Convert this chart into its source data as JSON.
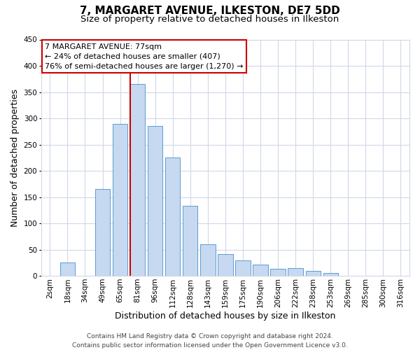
{
  "title": "7, MARGARET AVENUE, ILKESTON, DE7 5DD",
  "subtitle": "Size of property relative to detached houses in Ilkeston",
  "xlabel": "Distribution of detached houses by size in Ilkeston",
  "ylabel": "Number of detached properties",
  "bar_labels": [
    "2sqm",
    "18sqm",
    "34sqm",
    "49sqm",
    "65sqm",
    "81sqm",
    "96sqm",
    "112sqm",
    "128sqm",
    "143sqm",
    "159sqm",
    "175sqm",
    "190sqm",
    "206sqm",
    "222sqm",
    "238sqm",
    "253sqm",
    "269sqm",
    "285sqm",
    "300sqm",
    "316sqm"
  ],
  "bar_values": [
    0,
    25,
    0,
    165,
    290,
    365,
    285,
    225,
    133,
    60,
    42,
    30,
    22,
    14,
    15,
    10,
    5,
    0,
    0,
    0,
    0
  ],
  "bar_color": "#c6d9f0",
  "bar_edge_color": "#5b9bd5",
  "vline_color": "#cc0000",
  "vline_index": 5,
  "annotation_title": "7 MARGARET AVENUE: 77sqm",
  "annotation_line1": "← 24% of detached houses are smaller (407)",
  "annotation_line2": "76% of semi-detached houses are larger (1,270) →",
  "annotation_box_color": "#ffffff",
  "annotation_box_edge": "#cc0000",
  "ylim": [
    0,
    450
  ],
  "yticks": [
    0,
    50,
    100,
    150,
    200,
    250,
    300,
    350,
    400,
    450
  ],
  "footer1": "Contains HM Land Registry data © Crown copyright and database right 2024.",
  "footer2": "Contains public sector information licensed under the Open Government Licence v3.0.",
  "bg_color": "#ffffff",
  "grid_color": "#d0d8e8",
  "title_fontsize": 11,
  "subtitle_fontsize": 9.5,
  "axis_label_fontsize": 9,
  "tick_fontsize": 7.5,
  "footer_fontsize": 6.5,
  "annotation_fontsize": 8
}
